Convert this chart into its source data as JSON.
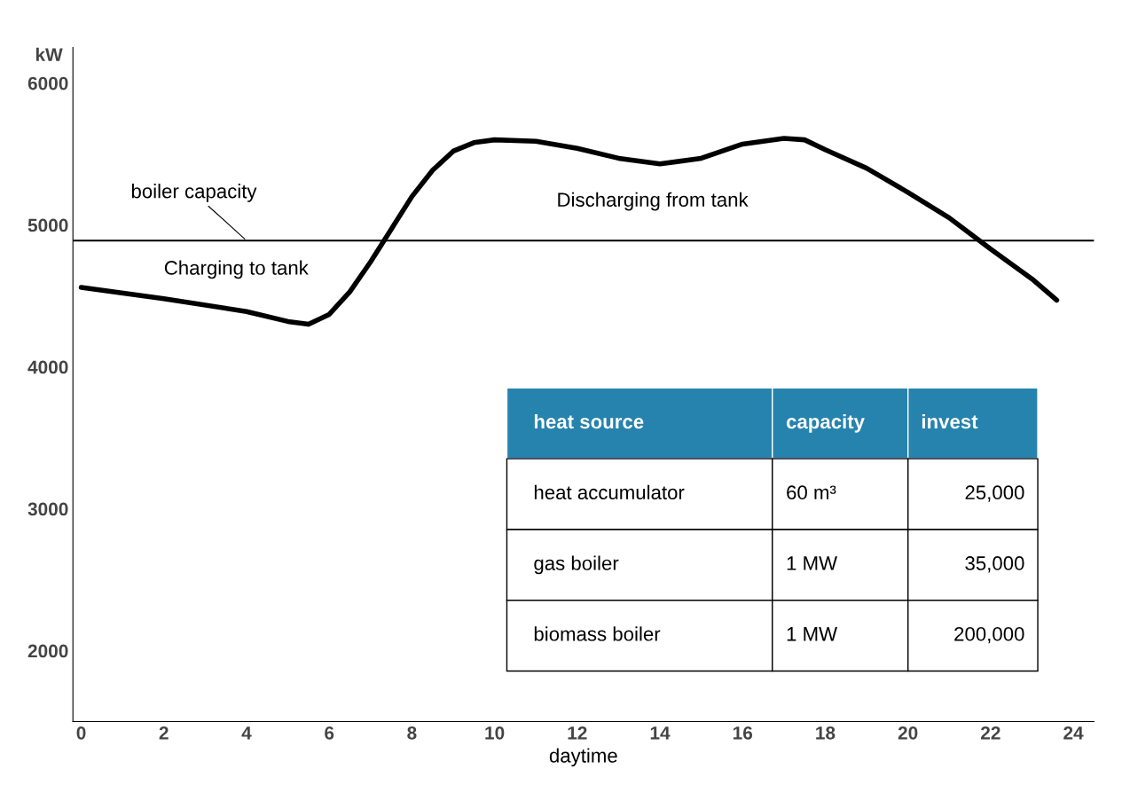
{
  "chart_data": {
    "type": "line",
    "xlabel": "daytime",
    "ylabel": "kW",
    "x": [
      0,
      2,
      4,
      5,
      5.5,
      6,
      6.5,
      7,
      7.5,
      8,
      8.5,
      9,
      9.5,
      10,
      11,
      12,
      13,
      14,
      15,
      16,
      17,
      17.5,
      18,
      19,
      20,
      21,
      22,
      23,
      23.6
    ],
    "series": [
      {
        "color": "#000000",
        "values": [
          4560,
          4480,
          4390,
          4320,
          4300,
          4370,
          4530,
          4740,
          4970,
          5200,
          5385,
          5520,
          5580,
          5600,
          5590,
          5540,
          5470,
          5430,
          5470,
          5570,
          5610,
          5600,
          5530,
          5400,
          5230,
          5050,
          4830,
          4620,
          4470
        ]
      }
    ],
    "xlim": [
      -0.2,
      24.5
    ],
    "xticks": [
      0,
      2,
      4,
      6,
      8,
      10,
      12,
      14,
      16,
      18,
      20,
      22,
      24
    ],
    "ylim": [
      1500,
      6250
    ],
    "yticks": [
      2000,
      3000,
      4000,
      5000,
      6000
    ],
    "ref_lines": [
      {
        "axis": "y",
        "value": 4890,
        "label": "boiler capacity",
        "color": "#000000"
      }
    ],
    "annotations": [
      "Charging to tank",
      "Discharging from tank",
      "heat source",
      "capacity",
      "invest",
      "heat accumulator",
      "60 m³",
      "25,000",
      "gas boiler",
      "1 MW",
      "35,000",
      "biomass boiler",
      "1 MW",
      "200,000"
    ],
    "grid": false,
    "marker": "none",
    "line_style": "solid"
  }
}
